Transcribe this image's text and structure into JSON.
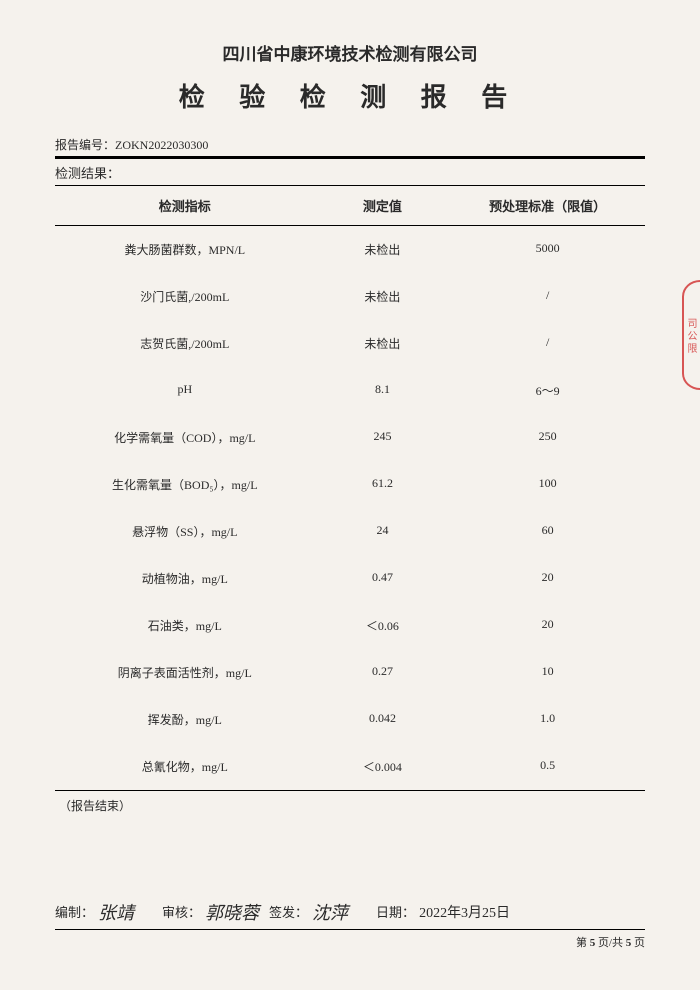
{
  "company": "四川省中康环境技术检测有限公司",
  "title": "检 验 检 测 报 告",
  "report_no_label": "报告编号：",
  "report_no": "ZOKN2022030300",
  "result_label": "检测结果：",
  "headers": {
    "c1": "检测指标",
    "c2": "测定值",
    "c3": "预处理标准（限值）"
  },
  "rows": [
    {
      "indicator": "粪大肠菌群数，MPN/L",
      "value": "未检出",
      "limit": "5000"
    },
    {
      "indicator": "沙门氏菌,/200mL",
      "value": "未检出",
      "limit": "/"
    },
    {
      "indicator": "志贺氏菌,/200mL",
      "value": "未检出",
      "limit": "/"
    },
    {
      "indicator": "pH",
      "value": "8.1",
      "limit": "6～9"
    },
    {
      "indicator": "化学需氧量（COD），mg/L",
      "value": "245",
      "limit": "250"
    },
    {
      "indicator": "生化需氧量（BOD₅），mg/L",
      "value": "61.2",
      "limit": "100"
    },
    {
      "indicator": "悬浮物（SS），mg/L",
      "value": "24",
      "limit": "60"
    },
    {
      "indicator": "动植物油，mg/L",
      "value": "0.47",
      "limit": "20"
    },
    {
      "indicator": "石油类，mg/L",
      "value": "＜0.06",
      "limit": "20"
    },
    {
      "indicator": "阴离子表面活性剂，mg/L",
      "value": "0.27",
      "limit": "10"
    },
    {
      "indicator": "挥发酚，mg/L",
      "value": "0.042",
      "limit": "1.0"
    },
    {
      "indicator": "总氰化物，mg/L",
      "value": "＜0.004",
      "limit": "0.5"
    }
  ],
  "end_note": "（报告结束）",
  "footer": {
    "prepared_label": "编制：",
    "prepared_sig": "张靖",
    "reviewed_label": "审核：",
    "reviewed_sig": "郭晓蓉",
    "issued_label": "签发：",
    "issued_sig": "沈萍",
    "date_label": "日期：",
    "date_value": "2022年3月25日"
  },
  "pager": {
    "prefix": "第 ",
    "cur": "5",
    "mid": " 页/共 ",
    "total": "5",
    "suffix": " 页"
  },
  "stamp_text": "司 公 限"
}
